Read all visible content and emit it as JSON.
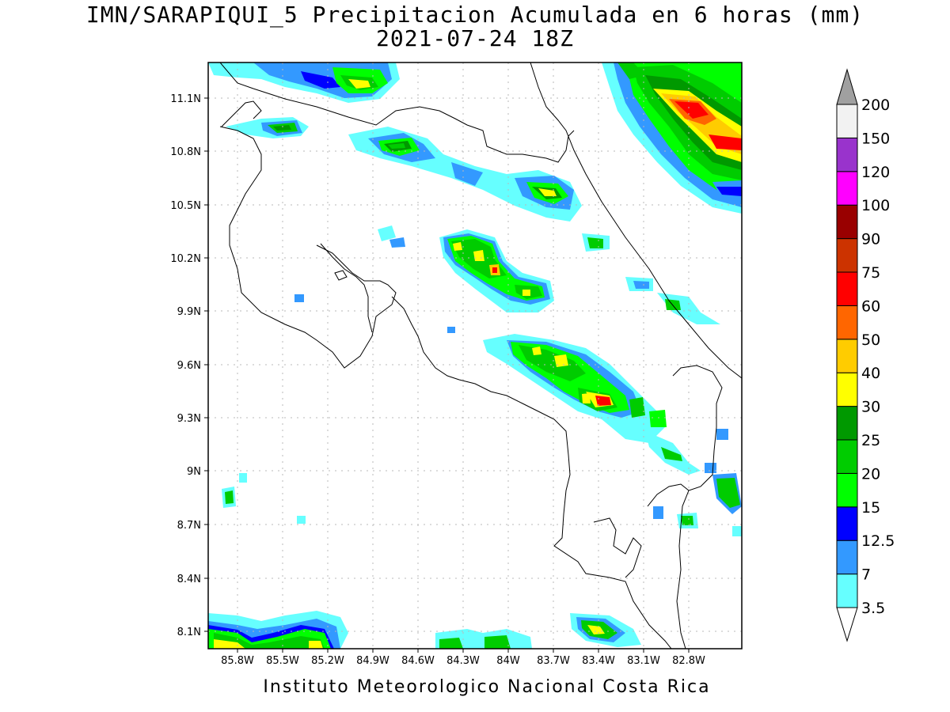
{
  "title_line1": "IMN/SARAPIQUI_5 Precipitacion Acumulada en 6 horas (mm)",
  "title_line2": "2021-07-24 18Z",
  "credit": "Instituto Meteorologico Nacional Costa Rica",
  "lat_ticks": [
    "11.1N",
    "10.8N",
    "10.5N",
    "10.2N",
    "9.9N",
    "9.6N",
    "9.3N",
    "9N",
    "8.7N",
    "8.4N",
    "8.1N"
  ],
  "lon_ticks": [
    "85.8W",
    "85.5W",
    "85.2W",
    "84.9W",
    "84.6W",
    "84.3W",
    "84W",
    "83.7W",
    "83.4W",
    "83.1W",
    "82.8W"
  ],
  "colorbar": {
    "levels": [
      "3.5",
      "7",
      "12.5",
      "15",
      "20",
      "25",
      "30",
      "40",
      "50",
      "60",
      "75",
      "90",
      "100",
      "120",
      "150",
      "200"
    ],
    "colors": [
      "#66ffff",
      "#3399ff",
      "#0000ff",
      "#00ff00",
      "#00cc00",
      "#009900",
      "#ffff00",
      "#ffcc00",
      "#ff6600",
      "#ff0000",
      "#cc3300",
      "#990000",
      "#ff00ff",
      "#9933cc",
      "#f2f2f2",
      "#a0a0a0"
    ]
  }
}
